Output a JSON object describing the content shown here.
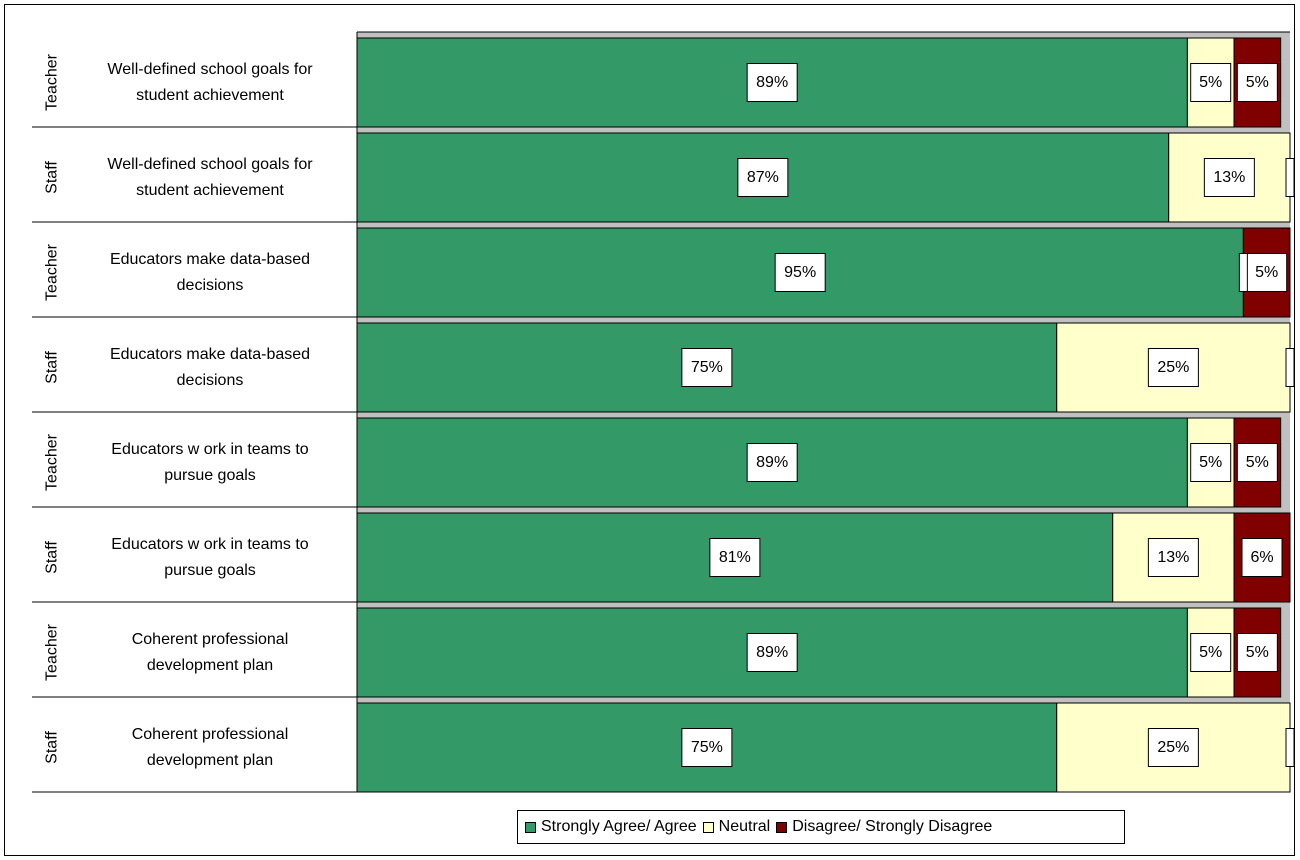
{
  "chart_data": {
    "type": "bar",
    "orientation": "horizontal",
    "stacked": true,
    "percent_scale": true,
    "rows": [
      {
        "group": "Teacher",
        "label": "Well-defined school goals for student achievement",
        "label_lines": [
          "Well-defined school goals for",
          "student achievement"
        ]
      },
      {
        "group": "Staff",
        "label": "Well-defined school goals for student achievement",
        "label_lines": [
          "Well-defined school goals for",
          "student achievement"
        ]
      },
      {
        "group": "Teacher",
        "label": "Educators make data-based decisions",
        "label_lines": [
          "Educators make data-based",
          "decisions"
        ]
      },
      {
        "group": "Staff",
        "label": "Educators make data-based decisions",
        "label_lines": [
          "Educators make data-based",
          "decisions"
        ]
      },
      {
        "group": "Teacher",
        "label": "Educators w ork in teams to pursue goals",
        "label_lines": [
          "Educators w ork in teams to",
          "pursue goals"
        ]
      },
      {
        "group": "Staff",
        "label": "Educators w ork in teams to pursue goals",
        "label_lines": [
          "Educators w ork in teams to",
          "pursue goals"
        ]
      },
      {
        "group": "Teacher",
        "label": "Coherent professional development plan",
        "label_lines": [
          "Coherent professional",
          "development plan"
        ]
      },
      {
        "group": "Staff",
        "label": "Coherent professional development plan",
        "label_lines": [
          "Coherent professional",
          "development plan"
        ]
      }
    ],
    "series": [
      {
        "name": "Strongly Agree/ Agree",
        "color": "#339966",
        "values": [
          0.89,
          0.87,
          0.95,
          0.75,
          0.89,
          0.81,
          0.89,
          0.75
        ],
        "labels": [
          "89%",
          "87%",
          "95%",
          "75%",
          "89%",
          "81%",
          "89%",
          "75%"
        ]
      },
      {
        "name": "Neutral",
        "color": "#FFFFCC",
        "values": [
          0.05,
          0.13,
          0.0,
          0.25,
          0.05,
          0.13,
          0.05,
          0.25
        ],
        "labels": [
          "5%",
          "13%",
          "",
          "25%",
          "5%",
          "13%",
          "5%",
          "25%"
        ]
      },
      {
        "name": "Disagree/ Strongly Disagree",
        "color": "#800000",
        "values": [
          0.05,
          0.0,
          0.05,
          0.0,
          0.05,
          0.06,
          0.05,
          0.0
        ],
        "labels": [
          "5%",
          "",
          "5%",
          "",
          "5%",
          "6%",
          "5%",
          ""
        ]
      }
    ],
    "legend_position": "bottom",
    "gap_color": "#C0C0C0"
  }
}
